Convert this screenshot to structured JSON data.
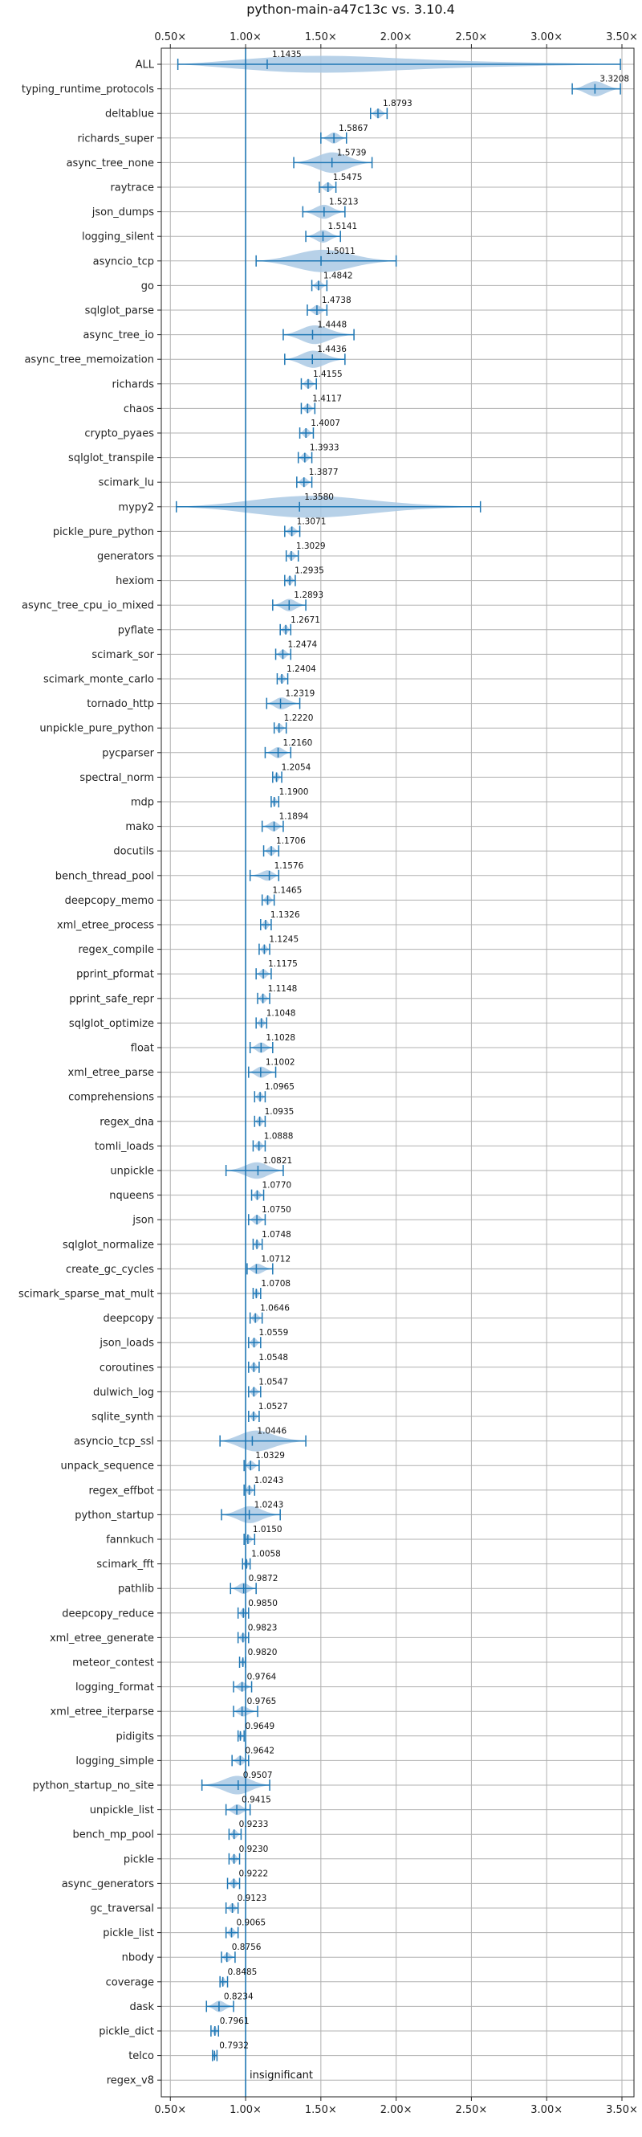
{
  "chart_data": {
    "type": "violin",
    "title": "python-main-a47c13c vs. 3.10.4",
    "xlabel": "",
    "ylabel": "",
    "xlim": [
      0.44,
      3.58
    ],
    "xticks": [
      0.5,
      1.0,
      1.5,
      2.0,
      2.5,
      3.0,
      3.5
    ],
    "xtick_labels": [
      "0.50×",
      "1.00×",
      "1.50×",
      "2.00×",
      "2.50×",
      "3.00×",
      "3.50×"
    ],
    "reference_line": 1.0,
    "grid": true,
    "colors": {
      "violin": "#aac9e4",
      "whisker": "#1f77b4",
      "refline": "#1f77b4",
      "grid": "#b0b0b0"
    },
    "annotation": "insignificant",
    "rows": [
      {
        "name": "ALL",
        "value": 1.1435,
        "label": "1.1435",
        "lo": 0.55,
        "hi": 3.49
      },
      {
        "name": "typing_runtime_protocols",
        "value": 3.3208,
        "label": "3.3208",
        "lo": 3.17,
        "hi": 3.49
      },
      {
        "name": "deltablue",
        "value": 1.8793,
        "label": "1.8793",
        "lo": 1.83,
        "hi": 1.94
      },
      {
        "name": "richards_super",
        "value": 1.5867,
        "label": "1.5867",
        "lo": 1.5,
        "hi": 1.67
      },
      {
        "name": "async_tree_none",
        "value": 1.5739,
        "label": "1.5739",
        "lo": 1.32,
        "hi": 1.84
      },
      {
        "name": "raytrace",
        "value": 1.5475,
        "label": "1.5475",
        "lo": 1.49,
        "hi": 1.6
      },
      {
        "name": "json_dumps",
        "value": 1.5213,
        "label": "1.5213",
        "lo": 1.38,
        "hi": 1.66
      },
      {
        "name": "logging_silent",
        "value": 1.5141,
        "label": "1.5141",
        "lo": 1.4,
        "hi": 1.63
      },
      {
        "name": "asyncio_tcp",
        "value": 1.5011,
        "label": "1.5011",
        "lo": 1.07,
        "hi": 2.0
      },
      {
        "name": "go",
        "value": 1.4842,
        "label": "1.4842",
        "lo": 1.44,
        "hi": 1.54
      },
      {
        "name": "sqlglot_parse",
        "value": 1.4738,
        "label": "1.4738",
        "lo": 1.41,
        "hi": 1.54
      },
      {
        "name": "async_tree_io",
        "value": 1.4448,
        "label": "1.4448",
        "lo": 1.25,
        "hi": 1.72
      },
      {
        "name": "async_tree_memoization",
        "value": 1.4436,
        "label": "1.4436",
        "lo": 1.26,
        "hi": 1.66
      },
      {
        "name": "richards",
        "value": 1.4155,
        "label": "1.4155",
        "lo": 1.37,
        "hi": 1.47
      },
      {
        "name": "chaos",
        "value": 1.4117,
        "label": "1.4117",
        "lo": 1.37,
        "hi": 1.46
      },
      {
        "name": "crypto_pyaes",
        "value": 1.4007,
        "label": "1.4007",
        "lo": 1.36,
        "hi": 1.45
      },
      {
        "name": "sqlglot_transpile",
        "value": 1.3933,
        "label": "1.3933",
        "lo": 1.35,
        "hi": 1.44
      },
      {
        "name": "scimark_lu",
        "value": 1.3877,
        "label": "1.3877",
        "lo": 1.34,
        "hi": 1.44
      },
      {
        "name": "mypy2",
        "value": 1.358,
        "label": "1.3580",
        "lo": 0.54,
        "hi": 2.56
      },
      {
        "name": "pickle_pure_python",
        "value": 1.3071,
        "label": "1.3071",
        "lo": 1.26,
        "hi": 1.36
      },
      {
        "name": "generators",
        "value": 1.3029,
        "label": "1.3029",
        "lo": 1.27,
        "hi": 1.35
      },
      {
        "name": "hexiom",
        "value": 1.2935,
        "label": "1.2935",
        "lo": 1.26,
        "hi": 1.33
      },
      {
        "name": "async_tree_cpu_io_mixed",
        "value": 1.2893,
        "label": "1.2893",
        "lo": 1.18,
        "hi": 1.4
      },
      {
        "name": "pyflate",
        "value": 1.2671,
        "label": "1.2671",
        "lo": 1.23,
        "hi": 1.3
      },
      {
        "name": "scimark_sor",
        "value": 1.2474,
        "label": "1.2474",
        "lo": 1.2,
        "hi": 1.3
      },
      {
        "name": "scimark_monte_carlo",
        "value": 1.2404,
        "label": "1.2404",
        "lo": 1.21,
        "hi": 1.28
      },
      {
        "name": "tornado_http",
        "value": 1.2319,
        "label": "1.2319",
        "lo": 1.14,
        "hi": 1.36
      },
      {
        "name": "unpickle_pure_python",
        "value": 1.222,
        "label": "1.2220",
        "lo": 1.19,
        "hi": 1.27
      },
      {
        "name": "pycparser",
        "value": 1.216,
        "label": "1.2160",
        "lo": 1.13,
        "hi": 1.3
      },
      {
        "name": "spectral_norm",
        "value": 1.2054,
        "label": "1.2054",
        "lo": 1.18,
        "hi": 1.24
      },
      {
        "name": "mdp",
        "value": 1.19,
        "label": "1.1900",
        "lo": 1.17,
        "hi": 1.22
      },
      {
        "name": "mako",
        "value": 1.1894,
        "label": "1.1894",
        "lo": 1.11,
        "hi": 1.25
      },
      {
        "name": "docutils",
        "value": 1.1706,
        "label": "1.1706",
        "lo": 1.12,
        "hi": 1.22
      },
      {
        "name": "bench_thread_pool",
        "value": 1.1576,
        "label": "1.1576",
        "lo": 1.03,
        "hi": 1.22
      },
      {
        "name": "deepcopy_memo",
        "value": 1.1465,
        "label": "1.1465",
        "lo": 1.11,
        "hi": 1.19
      },
      {
        "name": "xml_etree_process",
        "value": 1.1326,
        "label": "1.1326",
        "lo": 1.1,
        "hi": 1.17
      },
      {
        "name": "regex_compile",
        "value": 1.1245,
        "label": "1.1245",
        "lo": 1.09,
        "hi": 1.16
      },
      {
        "name": "pprint_pformat",
        "value": 1.1175,
        "label": "1.1175",
        "lo": 1.07,
        "hi": 1.17
      },
      {
        "name": "pprint_safe_repr",
        "value": 1.1148,
        "label": "1.1148",
        "lo": 1.08,
        "hi": 1.16
      },
      {
        "name": "sqlglot_optimize",
        "value": 1.1048,
        "label": "1.1048",
        "lo": 1.07,
        "hi": 1.14
      },
      {
        "name": "float",
        "value": 1.1028,
        "label": "1.1028",
        "lo": 1.03,
        "hi": 1.18
      },
      {
        "name": "xml_etree_parse",
        "value": 1.1002,
        "label": "1.1002",
        "lo": 1.02,
        "hi": 1.2
      },
      {
        "name": "comprehensions",
        "value": 1.0965,
        "label": "1.0965",
        "lo": 1.06,
        "hi": 1.13
      },
      {
        "name": "regex_dna",
        "value": 1.0935,
        "label": "1.0935",
        "lo": 1.06,
        "hi": 1.13
      },
      {
        "name": "tomli_loads",
        "value": 1.0888,
        "label": "1.0888",
        "lo": 1.05,
        "hi": 1.13
      },
      {
        "name": "unpickle",
        "value": 1.0821,
        "label": "1.0821",
        "lo": 0.87,
        "hi": 1.25
      },
      {
        "name": "nqueens",
        "value": 1.077,
        "label": "1.0770",
        "lo": 1.04,
        "hi": 1.12
      },
      {
        "name": "json",
        "value": 1.075,
        "label": "1.0750",
        "lo": 1.02,
        "hi": 1.13
      },
      {
        "name": "sqlglot_normalize",
        "value": 1.0748,
        "label": "1.0748",
        "lo": 1.05,
        "hi": 1.11
      },
      {
        "name": "create_gc_cycles",
        "value": 1.0712,
        "label": "1.0712",
        "lo": 1.01,
        "hi": 1.18
      },
      {
        "name": "scimark_sparse_mat_mult",
        "value": 1.0708,
        "label": "1.0708",
        "lo": 1.05,
        "hi": 1.1
      },
      {
        "name": "deepcopy",
        "value": 1.0646,
        "label": "1.0646",
        "lo": 1.03,
        "hi": 1.11
      },
      {
        "name": "json_loads",
        "value": 1.0559,
        "label": "1.0559",
        "lo": 1.02,
        "hi": 1.1
      },
      {
        "name": "coroutines",
        "value": 1.0548,
        "label": "1.0548",
        "lo": 1.02,
        "hi": 1.09
      },
      {
        "name": "dulwich_log",
        "value": 1.0547,
        "label": "1.0547",
        "lo": 1.02,
        "hi": 1.1
      },
      {
        "name": "sqlite_synth",
        "value": 1.0527,
        "label": "1.0527",
        "lo": 1.02,
        "hi": 1.09
      },
      {
        "name": "asyncio_tcp_ssl",
        "value": 1.0446,
        "label": "1.0446",
        "lo": 0.83,
        "hi": 1.4
      },
      {
        "name": "unpack_sequence",
        "value": 1.0329,
        "label": "1.0329",
        "lo": 0.99,
        "hi": 1.09
      },
      {
        "name": "regex_effbot",
        "value": 1.0243,
        "label": "1.0243",
        "lo": 0.99,
        "hi": 1.06
      },
      {
        "name": "python_startup",
        "value": 1.0243,
        "label": "1.0243",
        "lo": 0.84,
        "hi": 1.23
      },
      {
        "name": "fannkuch",
        "value": 1.015,
        "label": "1.0150",
        "lo": 0.99,
        "hi": 1.06
      },
      {
        "name": "scimark_fft",
        "value": 1.0058,
        "label": "1.0058",
        "lo": 0.98,
        "hi": 1.03
      },
      {
        "name": "pathlib",
        "value": 0.9872,
        "label": "0.9872",
        "lo": 0.9,
        "hi": 1.07
      },
      {
        "name": "deepcopy_reduce",
        "value": 0.985,
        "label": "0.9850",
        "lo": 0.95,
        "hi": 1.02
      },
      {
        "name": "xml_etree_generate",
        "value": 0.9823,
        "label": "0.9823",
        "lo": 0.95,
        "hi": 1.02
      },
      {
        "name": "meteor_contest",
        "value": 0.982,
        "label": "0.9820",
        "lo": 0.96,
        "hi": 1.0
      },
      {
        "name": "logging_format",
        "value": 0.9764,
        "label": "0.9764",
        "lo": 0.92,
        "hi": 1.04
      },
      {
        "name": "xml_etree_iterparse",
        "value": 0.9765,
        "label": "0.9765",
        "lo": 0.92,
        "hi": 1.08
      },
      {
        "name": "pidigits",
        "value": 0.9649,
        "label": "0.9649",
        "lo": 0.95,
        "hi": 0.99
      },
      {
        "name": "logging_simple",
        "value": 0.9642,
        "label": "0.9642",
        "lo": 0.91,
        "hi": 1.02
      },
      {
        "name": "python_startup_no_site",
        "value": 0.9507,
        "label": "0.9507",
        "lo": 0.71,
        "hi": 1.16
      },
      {
        "name": "unpickle_list",
        "value": 0.9415,
        "label": "0.9415",
        "lo": 0.87,
        "hi": 1.03
      },
      {
        "name": "bench_mp_pool",
        "value": 0.9233,
        "label": "0.9233",
        "lo": 0.89,
        "hi": 0.97
      },
      {
        "name": "pickle",
        "value": 0.923,
        "label": "0.9230",
        "lo": 0.89,
        "hi": 0.96
      },
      {
        "name": "async_generators",
        "value": 0.9222,
        "label": "0.9222",
        "lo": 0.88,
        "hi": 0.96
      },
      {
        "name": "gc_traversal",
        "value": 0.9123,
        "label": "0.9123",
        "lo": 0.87,
        "hi": 0.95
      },
      {
        "name": "pickle_list",
        "value": 0.9065,
        "label": "0.9065",
        "lo": 0.87,
        "hi": 0.95
      },
      {
        "name": "nbody",
        "value": 0.8756,
        "label": "0.8756",
        "lo": 0.84,
        "hi": 0.93
      },
      {
        "name": "coverage",
        "value": 0.8485,
        "label": "0.8485",
        "lo": 0.83,
        "hi": 0.88
      },
      {
        "name": "dask",
        "value": 0.8234,
        "label": "0.8234",
        "lo": 0.74,
        "hi": 0.92
      },
      {
        "name": "pickle_dict",
        "value": 0.7961,
        "label": "0.7961",
        "lo": 0.77,
        "hi": 0.82
      },
      {
        "name": "telco",
        "value": 0.7932,
        "label": "0.7932",
        "lo": 0.78,
        "hi": 0.81
      },
      {
        "name": "regex_v8",
        "value": null,
        "label": "",
        "lo": null,
        "hi": null
      }
    ]
  }
}
